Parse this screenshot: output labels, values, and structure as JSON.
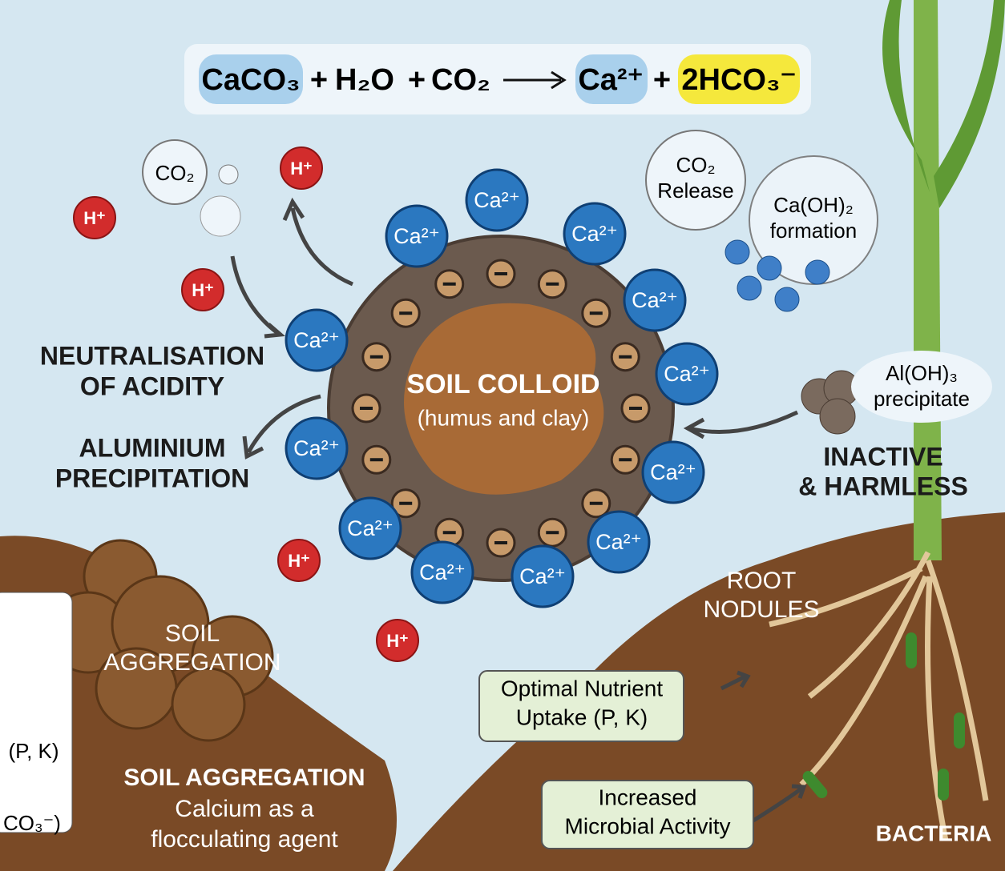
{
  "equation": [
    "CaCO₃",
    "+",
    "H₂O",
    "+",
    "CO₂",
    "Ca²⁺",
    "+",
    "2HCO₃⁻"
  ],
  "bubbles": {
    "co2": "CO₂",
    "co2_release": [
      "CO₂",
      "Release"
    ],
    "caoh2": [
      "Ca(OH)₂",
      "formation"
    ]
  },
  "hydrogen_ions": [
    "H⁺",
    "H⁺",
    "H⁺",
    "H⁺",
    "H⁺"
  ],
  "calcium_ions": [
    "Ca²⁺",
    "Ca²⁺",
    "Ca²⁺",
    "Ca²⁺",
    "Ca²⁺",
    "Ca²⁺",
    "Ca²⁺",
    "Ca²⁺",
    "Ca²⁺",
    "Ca²⁺",
    "Ca²⁺",
    "Ca²⁺"
  ],
  "colloid": {
    "title": "SOIL COLLOID",
    "subtitle": "(humus and clay)"
  },
  "labels": {
    "neutralisation": [
      "NEUTRALISATION",
      "OF ACIDITY"
    ],
    "aluminium": [
      "ALUMINIUM",
      "PRECIPITATION"
    ],
    "aloh3": [
      "Al(OH)₃",
      "precipitate"
    ],
    "inactive": [
      "INACTIVE",
      "& HARMLESS"
    ],
    "root_nodules": [
      "ROOT",
      "NODULES"
    ],
    "soil_aggregation_clod": [
      "SOIL",
      "AGGREGATION"
    ],
    "nutrient": [
      "Optimal Nutrient",
      "Uptake (P, K)"
    ],
    "microbial": [
      "Increased",
      "Microbial Activity"
    ],
    "bacteria": "BACTERIA",
    "soil_aggregation": [
      "SOIL AGGREGATION",
      "Calcium as a",
      "flocculating agent"
    ],
    "left_cut": [
      "(P, K)",
      "CO₃⁻)"
    ]
  }
}
